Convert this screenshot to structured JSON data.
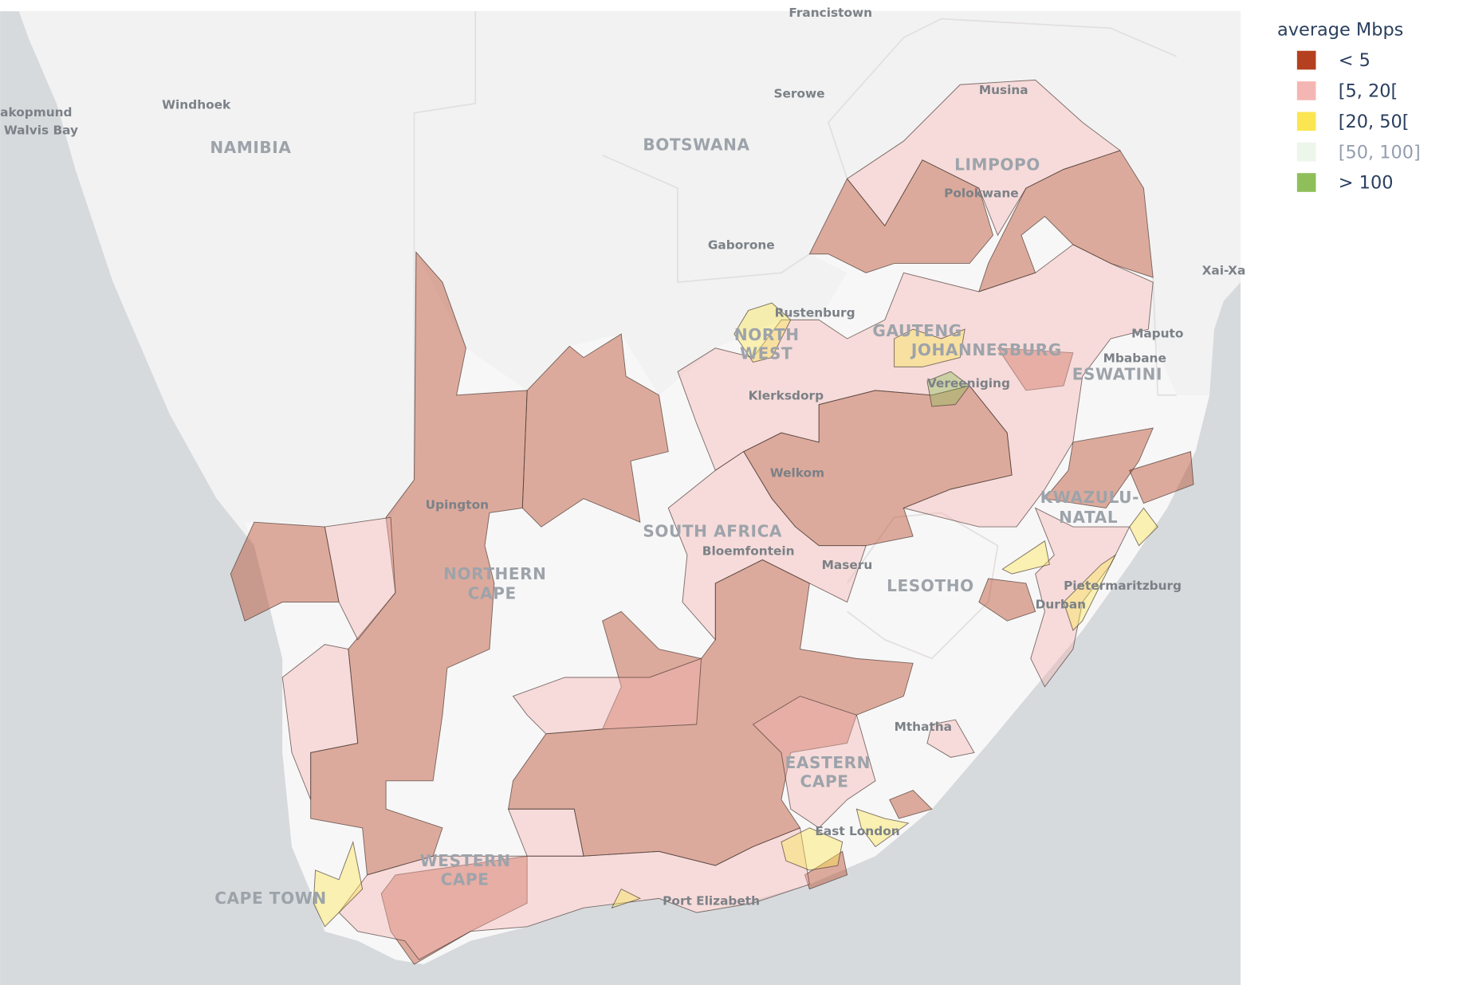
{
  "map": {
    "labels": [
      "Francistown",
      "Windhoek",
      "akopmund",
      "Walvis Bay",
      "NAMIBIA",
      "Serowe",
      "BOTSWANA",
      "Musina",
      "LIMPOPO",
      "Polokwane",
      "Gaborone",
      "Xai-Xa",
      "Rustenburg",
      "NORTH",
      "WEST",
      "GAUTENG",
      "JOHANNESBURG",
      "Maputo",
      "Mbabane",
      "ESWATINI",
      "Vereeniging",
      "Klerksdorp",
      "Welkom",
      "Upington",
      "KWAZULU-",
      "NATAL",
      "SOUTH AFRICA",
      "Bloemfontein",
      "Maseru",
      "NORTHERN",
      "CAPE",
      "LESOTHO",
      "Pietermaritzburg",
      "Durban",
      "Mthatha",
      "EASTERN",
      "CAPE",
      "East London",
      "WESTERN",
      "CAPE",
      "CAPE TOWN",
      "Port Elizabeth"
    ],
    "legend": {
      "title": "average Mbps",
      "items": [
        {
          "name": "< 5",
          "color": "#b5401f",
          "enabled": true
        },
        {
          "name": "[5, 20[",
          "color": "#f4b6b2",
          "enabled": true
        },
        {
          "name": "[20, 50[",
          "color": "#fbe652",
          "enabled": true
        },
        {
          "name": "[50, 100]",
          "color": "#dff0dc",
          "enabled": false
        },
        {
          "name": "> 100",
          "color": "#8fbf5a",
          "enabled": true
        }
      ]
    }
  }
}
